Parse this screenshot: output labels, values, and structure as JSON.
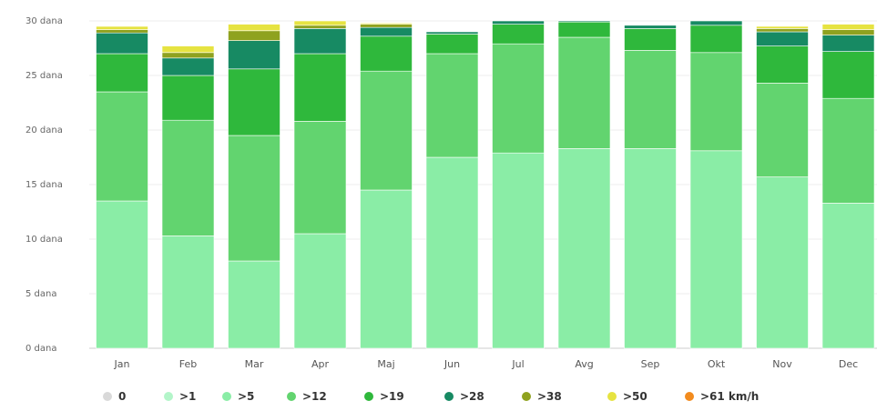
{
  "chart_data": {
    "type": "bar",
    "stacked": true,
    "title": "",
    "xlabel": "",
    "ylabel": "",
    "ylim": [
      0,
      30
    ],
    "yticks": [
      0,
      5,
      10,
      15,
      20,
      25,
      30
    ],
    "ytick_labels": [
      "0 dana",
      "5 dana",
      "10 dana",
      "15 dana",
      "20 dana",
      "25 dana",
      "30 dana"
    ],
    "grid": true,
    "legend_position": "bottom",
    "categories": [
      "Jan",
      "Feb",
      "Mar",
      "Apr",
      "Maj",
      "Jun",
      "Jul",
      "Avg",
      "Sep",
      "Okt",
      "Nov",
      "Dec"
    ],
    "series": [
      {
        "name": "0",
        "color": "#d9d9d9",
        "values": [
          0,
          0,
          0,
          0,
          0,
          0,
          0,
          0,
          0,
          0,
          0,
          0
        ]
      },
      {
        "name": ">1",
        "color": "#b3f5c9",
        "values": [
          0,
          0,
          0,
          0,
          0,
          0,
          0,
          0,
          0,
          0,
          0,
          0
        ]
      },
      {
        "name": ">5",
        "color": "#8aeda6",
        "values": [
          13.5,
          10.3,
          8.0,
          10.5,
          14.5,
          17.5,
          17.9,
          18.3,
          18.3,
          18.1,
          15.7,
          13.3
        ]
      },
      {
        "name": ">12",
        "color": "#62d46f",
        "values": [
          10.0,
          10.6,
          11.5,
          10.3,
          10.9,
          9.5,
          10.0,
          10.2,
          9.0,
          9.0,
          8.6,
          9.6
        ]
      },
      {
        "name": ">19",
        "color": "#2fb83c",
        "values": [
          3.5,
          4.1,
          6.1,
          6.2,
          3.2,
          1.8,
          1.8,
          1.4,
          2.0,
          2.5,
          3.4,
          4.3
        ]
      },
      {
        "name": ">28",
        "color": "#178a63",
        "values": [
          1.9,
          1.6,
          2.6,
          2.3,
          0.8,
          0.2,
          0.3,
          0.1,
          0.3,
          0.4,
          1.3,
          1.5
        ]
      },
      {
        "name": ">38",
        "color": "#8fa21f",
        "values": [
          0.3,
          0.5,
          0.9,
          0.3,
          0.3,
          0.0,
          0.0,
          0.0,
          0.0,
          0.0,
          0.3,
          0.5
        ]
      },
      {
        "name": ">50",
        "color": "#e6e341",
        "values": [
          0.3,
          0.6,
          0.6,
          0.4,
          0.1,
          0.0,
          0.0,
          0.0,
          0.0,
          0.0,
          0.2,
          0.5
        ]
      },
      {
        "name": ">61 km/h",
        "color": "#f28b1e",
        "values": [
          0,
          0,
          0,
          0,
          0,
          0,
          0,
          0,
          0,
          0,
          0,
          0
        ]
      }
    ]
  }
}
